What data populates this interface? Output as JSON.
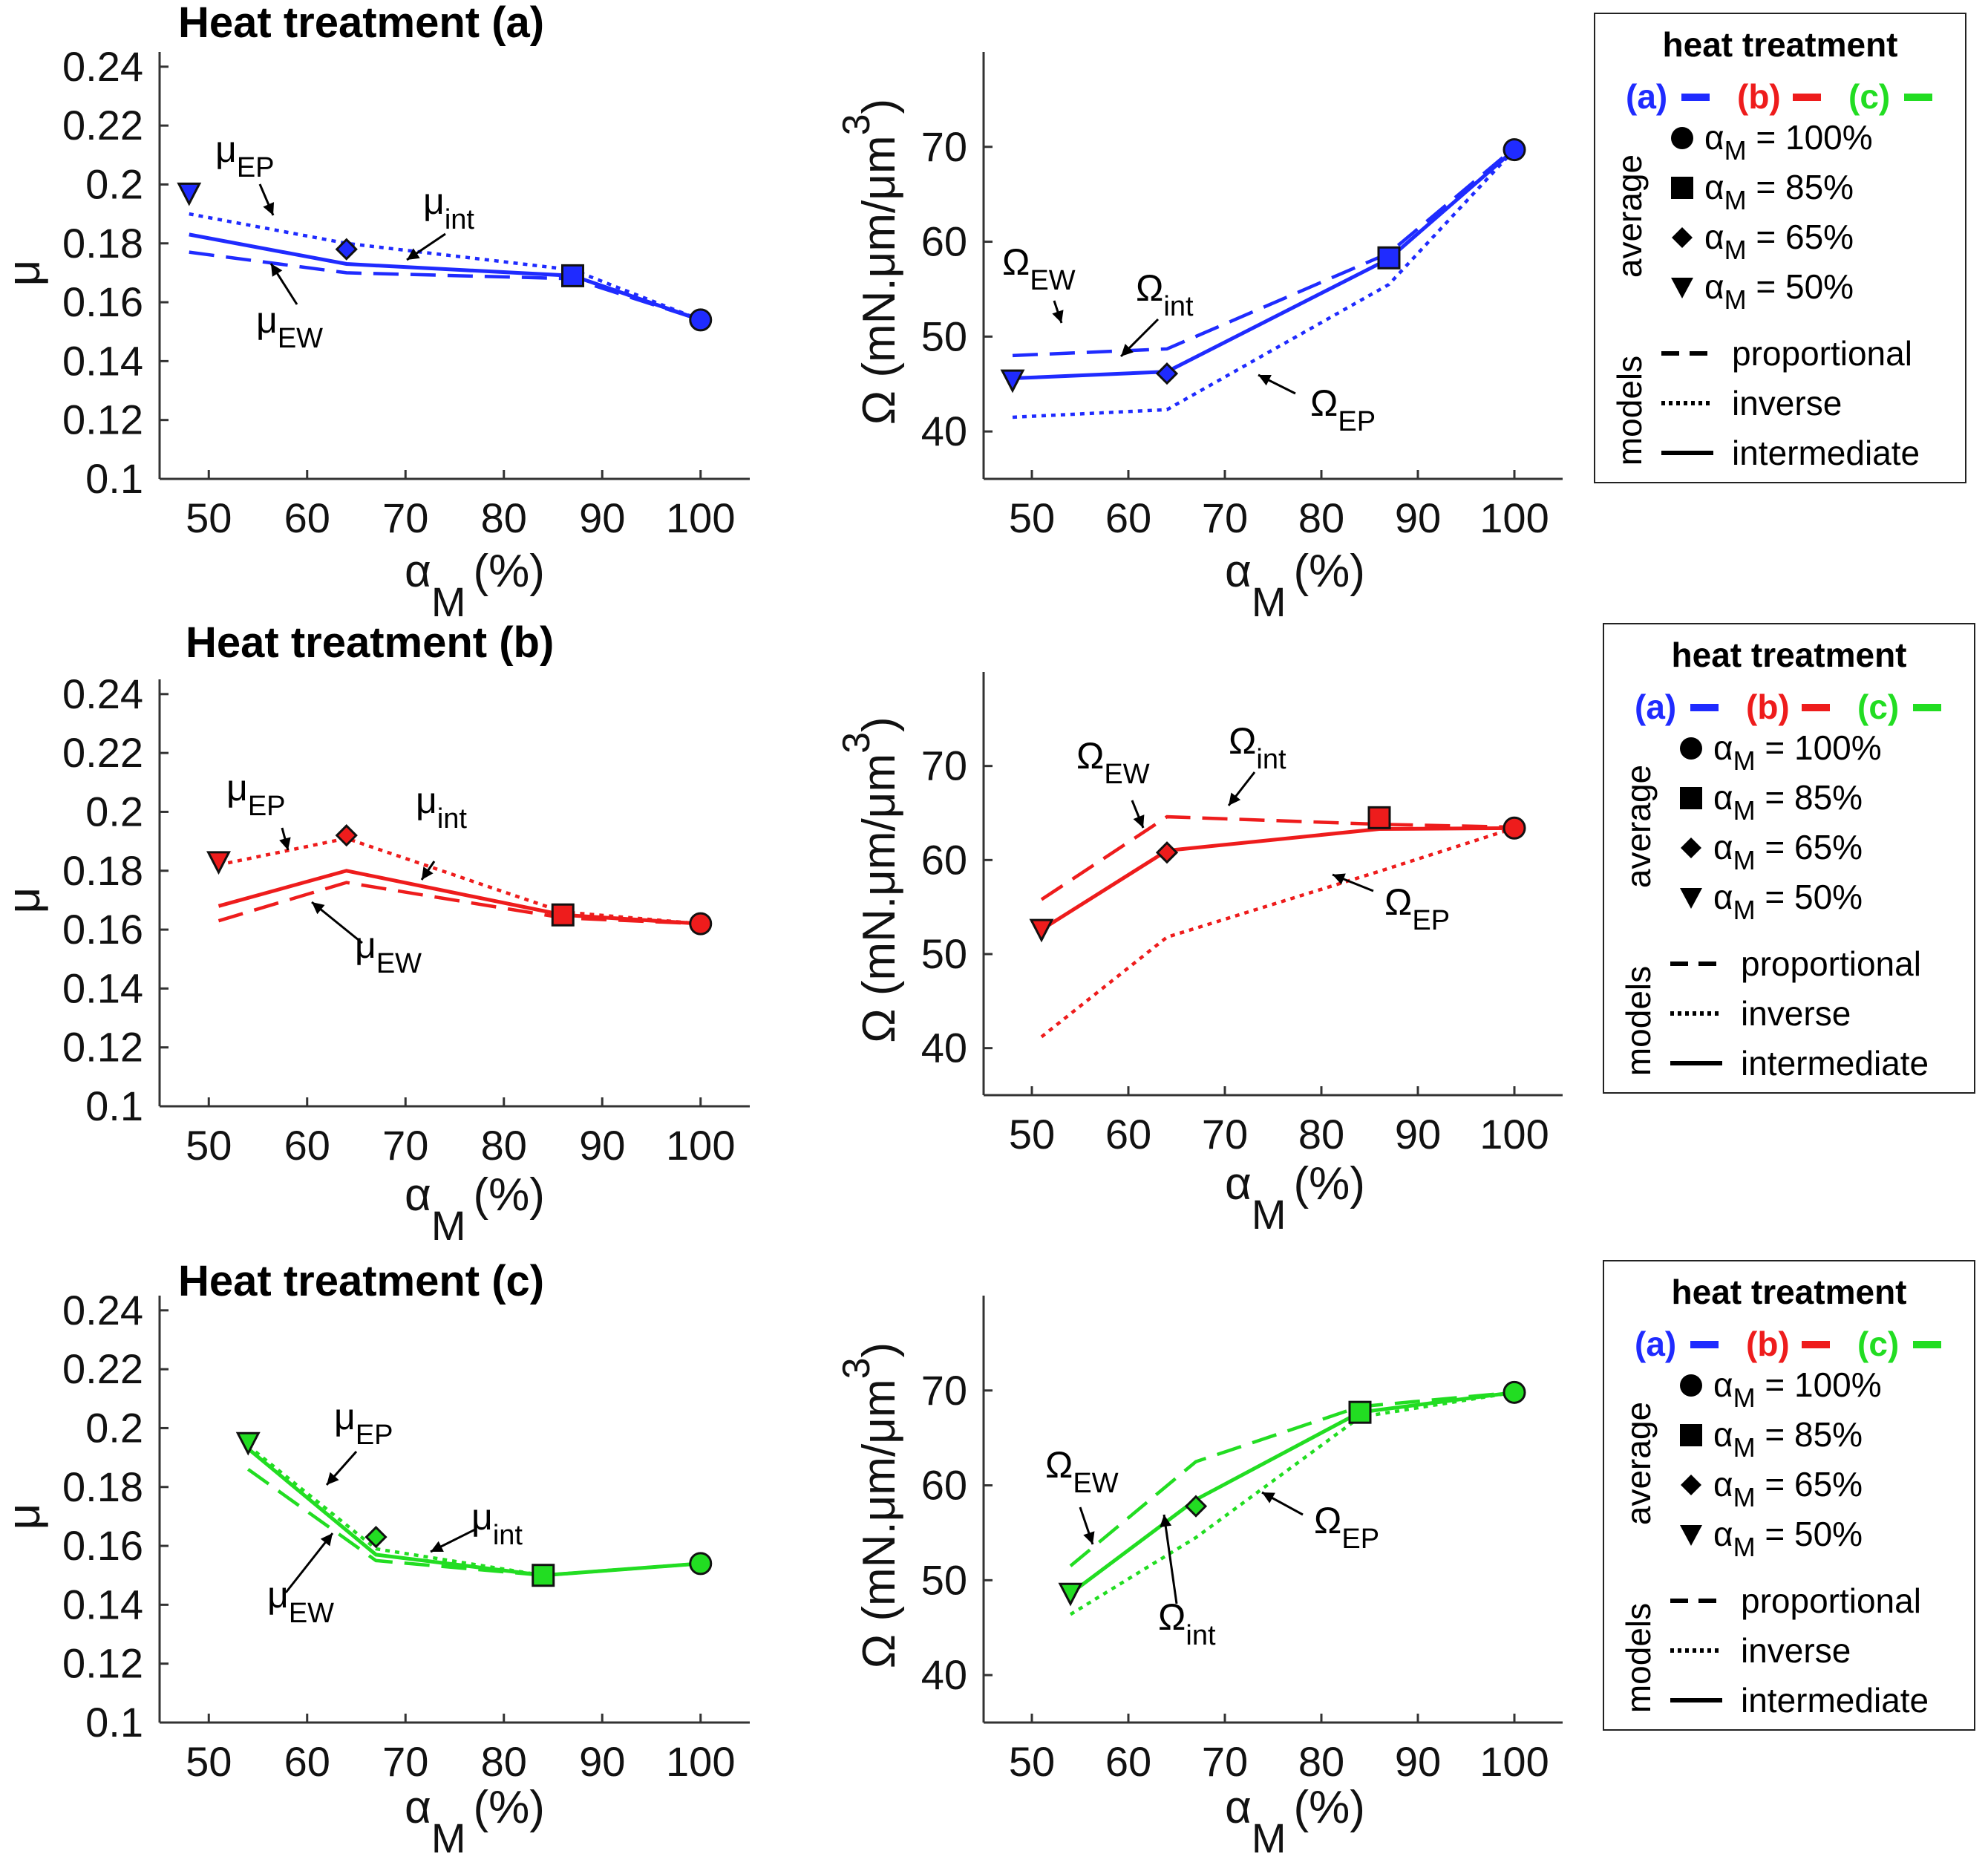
{
  "chart_data": [
    {
      "type": "line",
      "panel": "mu-a",
      "title": "Heat treatment (a)",
      "ylabel": "μ",
      "xlabel": "α",
      "xlabel_sub": "M",
      "xlabel_unit": "(%)",
      "xlim": [
        45,
        105
      ],
      "ylim": [
        0.1,
        0.245
      ],
      "xticks": [
        "50",
        "60",
        "70",
        "80",
        "90",
        "100"
      ],
      "yticks": [
        "0.1",
        "0.12",
        "0.14",
        "0.16",
        "0.18",
        "0.2",
        "0.22",
        "0.24"
      ],
      "color": "#1f2bff",
      "series": [
        {
          "name": "proportional",
          "x": [
            48,
            64,
            87,
            100
          ],
          "y": [
            0.177,
            0.17,
            0.168,
            0.154
          ]
        },
        {
          "name": "inverse",
          "x": [
            48,
            64,
            87,
            100
          ],
          "y": [
            0.19,
            0.18,
            0.171,
            0.154
          ]
        },
        {
          "name": "intermediate",
          "x": [
            48,
            64,
            87,
            100
          ],
          "y": [
            0.183,
            0.173,
            0.169,
            0.154
          ]
        }
      ],
      "markers": {
        "x": [
          48,
          64,
          87,
          100
        ],
        "y": [
          0.197,
          0.178,
          0.169,
          0.154
        ],
        "shapes": [
          "triangle",
          "diamond",
          "square",
          "circle"
        ]
      },
      "annotations": [
        {
          "base": "μ",
          "sub": "EP"
        },
        {
          "base": "μ",
          "sub": "int"
        },
        {
          "base": "μ",
          "sub": "EW"
        }
      ]
    },
    {
      "type": "line",
      "panel": "omega-a",
      "title": "",
      "ylabel": "Ω (mN.μm/μm",
      "ylabel_sup": "3",
      "ylabel_close": ")",
      "xlabel": "α",
      "xlabel_sub": "M",
      "xlabel_unit": "(%)",
      "xlim": [
        45,
        105
      ],
      "ylim": [
        35,
        80
      ],
      "xticks": [
        "50",
        "60",
        "70",
        "80",
        "90",
        "100"
      ],
      "yticks": [
        "40",
        "50",
        "60",
        "70"
      ],
      "color": "#1f2bff",
      "series": [
        {
          "name": "proportional",
          "x": [
            48,
            64,
            87,
            100
          ],
          "y": [
            48.0,
            48.7,
            58.8,
            69.9
          ]
        },
        {
          "name": "inverse",
          "x": [
            48,
            64,
            87,
            100
          ],
          "y": [
            41.5,
            42.3,
            55.5,
            69.7
          ]
        },
        {
          "name": "intermediate",
          "x": [
            48,
            64,
            87,
            100
          ],
          "y": [
            45.6,
            46.3,
            58.2,
            69.7
          ]
        }
      ],
      "markers": {
        "x": [
          48,
          64,
          87,
          100
        ],
        "y": [
          45.4,
          46.1,
          58.3,
          69.7
        ],
        "shapes": [
          "triangle",
          "diamond",
          "square",
          "circle"
        ]
      },
      "annotations": [
        {
          "base": "Ω",
          "sub": "EW"
        },
        {
          "base": "Ω",
          "sub": "int"
        },
        {
          "base": "Ω",
          "sub": "EP"
        }
      ]
    },
    {
      "type": "line",
      "panel": "mu-b",
      "title": "Heat treatment (b)",
      "ylabel": "μ",
      "xlabel": "α",
      "xlabel_sub": "M",
      "xlabel_unit": "(%)",
      "xlim": [
        45,
        105
      ],
      "ylim": [
        0.1,
        0.245
      ],
      "xticks": [
        "50",
        "60",
        "70",
        "80",
        "90",
        "100"
      ],
      "yticks": [
        "0.1",
        "0.12",
        "0.14",
        "0.16",
        "0.18",
        "0.2",
        "0.22",
        "0.24"
      ],
      "color": "#ee1c1c",
      "series": [
        {
          "name": "proportional",
          "x": [
            51,
            64,
            86,
            100
          ],
          "y": [
            0.163,
            0.176,
            0.164,
            0.162
          ]
        },
        {
          "name": "inverse",
          "x": [
            51,
            64,
            86,
            100
          ],
          "y": [
            0.182,
            0.191,
            0.166,
            0.162
          ]
        },
        {
          "name": "intermediate",
          "x": [
            51,
            64,
            86,
            100
          ],
          "y": [
            0.168,
            0.18,
            0.165,
            0.162
          ]
        }
      ],
      "markers": {
        "x": [
          51,
          64,
          86,
          100
        ],
        "y": [
          0.183,
          0.192,
          0.165,
          0.162
        ],
        "shapes": [
          "triangle",
          "diamond",
          "square",
          "circle"
        ]
      },
      "annotations": [
        {
          "base": "μ",
          "sub": "EP"
        },
        {
          "base": "μ",
          "sub": "int"
        },
        {
          "base": "μ",
          "sub": "EW"
        }
      ]
    },
    {
      "type": "line",
      "panel": "omega-b",
      "title": "",
      "ylabel": "Ω (mN.μm/μm",
      "ylabel_sup": "3",
      "ylabel_close": ")",
      "xlabel": "α",
      "xlabel_sub": "M",
      "xlabel_unit": "(%)",
      "xlim": [
        45,
        105
      ],
      "ylim": [
        35,
        80
      ],
      "xticks": [
        "50",
        "60",
        "70",
        "80",
        "90",
        "100"
      ],
      "yticks": [
        "40",
        "50",
        "60",
        "70"
      ],
      "color": "#ee1c1c",
      "series": [
        {
          "name": "proportional",
          "x": [
            51,
            64,
            86,
            100
          ],
          "y": [
            55.8,
            64.6,
            63.8,
            63.5
          ]
        },
        {
          "name": "inverse",
          "x": [
            51,
            64,
            86,
            100
          ],
          "y": [
            41.2,
            51.8,
            58.8,
            63.4
          ]
        },
        {
          "name": "intermediate",
          "x": [
            51,
            64,
            86,
            100
          ],
          "y": [
            52.6,
            61.0,
            63.3,
            63.4
          ]
        }
      ],
      "markers": {
        "x": [
          51,
          64,
          86,
          100
        ],
        "y": [
          52.6,
          60.8,
          64.5,
          63.4
        ],
        "shapes": [
          "triangle",
          "diamond",
          "square",
          "circle"
        ]
      },
      "annotations": [
        {
          "base": "Ω",
          "sub": "EW"
        },
        {
          "base": "Ω",
          "sub": "int"
        },
        {
          "base": "Ω",
          "sub": "EP"
        }
      ]
    },
    {
      "type": "line",
      "panel": "mu-c",
      "title": "Heat treatment (c)",
      "ylabel": "μ",
      "xlabel": "α",
      "xlabel_sub": "M",
      "xlabel_unit": "(%)",
      "xlim": [
        45,
        105
      ],
      "ylim": [
        0.1,
        0.245
      ],
      "xticks": [
        "50",
        "60",
        "70",
        "80",
        "90",
        "100"
      ],
      "yticks": [
        "0.1",
        "0.12",
        "0.14",
        "0.16",
        "0.18",
        "0.2",
        "0.22",
        "0.24"
      ],
      "color": "#22dd22",
      "series": [
        {
          "name": "proportional",
          "x": [
            54,
            67,
            84,
            100
          ],
          "y": [
            0.186,
            0.155,
            0.15,
            0.154
          ]
        },
        {
          "name": "inverse",
          "x": [
            54,
            67,
            84,
            100
          ],
          "y": [
            0.194,
            0.159,
            0.15,
            0.154
          ]
        },
        {
          "name": "intermediate",
          "x": [
            54,
            67,
            84,
            100
          ],
          "y": [
            0.193,
            0.157,
            0.15,
            0.154
          ]
        }
      ],
      "markers": {
        "x": [
          54,
          67,
          84,
          100
        ],
        "y": [
          0.195,
          0.163,
          0.15,
          0.154
        ],
        "shapes": [
          "triangle",
          "diamond",
          "square",
          "circle"
        ]
      },
      "annotations": [
        {
          "base": "μ",
          "sub": "EP"
        },
        {
          "base": "μ",
          "sub": "int"
        },
        {
          "base": "μ",
          "sub": "EW"
        }
      ]
    },
    {
      "type": "line",
      "panel": "omega-c",
      "title": "",
      "ylabel": "Ω (mN.μm/μm",
      "ylabel_sup": "3",
      "ylabel_close": ")",
      "xlabel": "α",
      "xlabel_sub": "M",
      "xlabel_unit": "(%)",
      "xlim": [
        45,
        105
      ],
      "ylim": [
        35,
        80
      ],
      "xticks": [
        "50",
        "60",
        "70",
        "80",
        "90",
        "100"
      ],
      "yticks": [
        "40",
        "50",
        "60",
        "70"
      ],
      "color": "#22dd22",
      "series": [
        {
          "name": "proportional",
          "x": [
            54,
            67,
            84,
            100
          ],
          "y": [
            51.5,
            62.5,
            68.3,
            69.8
          ]
        },
        {
          "name": "inverse",
          "x": [
            54,
            67,
            84,
            100
          ],
          "y": [
            46.4,
            54.5,
            67.2,
            69.8
          ]
        },
        {
          "name": "intermediate",
          "x": [
            54,
            67,
            84,
            100
          ],
          "y": [
            48.6,
            58.5,
            67.7,
            69.8
          ]
        }
      ],
      "markers": {
        "x": [
          54,
          67,
          84,
          100
        ],
        "y": [
          48.6,
          57.8,
          67.7,
          69.8
        ],
        "shapes": [
          "triangle",
          "diamond",
          "square",
          "circle"
        ]
      },
      "annotations": [
        {
          "base": "Ω",
          "sub": "EW"
        },
        {
          "base": "Ω",
          "sub": "int"
        },
        {
          "base": "Ω",
          "sub": "EP"
        }
      ]
    }
  ],
  "legend": {
    "title": "heat treatment",
    "treatments": [
      {
        "label": "(a)",
        "color": "#1f2bff"
      },
      {
        "label": "(b)",
        "color": "#ee1c1c"
      },
      {
        "label": "(c)",
        "color": "#22dd22"
      }
    ],
    "average_label": "average",
    "average_entries": [
      {
        "symbol": "circle",
        "base": "α",
        "sub": "M",
        "rest": " = 100%"
      },
      {
        "symbol": "square",
        "base": "α",
        "sub": "M",
        "rest": " = 85%"
      },
      {
        "symbol": "diamond",
        "base": "α",
        "sub": "M",
        "rest": " = 65%"
      },
      {
        "symbol": "triangle",
        "base": "α",
        "sub": "M",
        "rest": " = 50%"
      }
    ],
    "models_label": "models",
    "model_entries": [
      {
        "style": "dashed",
        "label": "proportional"
      },
      {
        "style": "dotted",
        "label": "inverse"
      },
      {
        "style": "solid",
        "label": "intermediate"
      }
    ]
  }
}
